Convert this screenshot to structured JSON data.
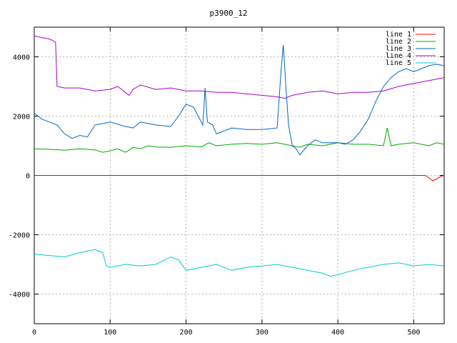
{
  "chart_data": {
    "type": "line",
    "title": "p3900_12",
    "xlabel": "",
    "ylabel": "",
    "xlim": [
      0,
      540
    ],
    "ylim": [
      -5000,
      5000
    ],
    "xticks": [
      0,
      100,
      200,
      300,
      400,
      500
    ],
    "yticks": [
      -4000,
      -2000,
      0,
      2000,
      4000
    ],
    "grid": true,
    "legend_position": "top-right",
    "series": [
      {
        "name": "line 1",
        "color": "#ff0000",
        "points": [
          [
            0,
            0
          ],
          [
            100,
            0
          ],
          [
            200,
            0
          ],
          [
            300,
            0
          ],
          [
            400,
            0
          ],
          [
            500,
            0
          ],
          [
            515,
            0
          ],
          [
            520,
            -80
          ],
          [
            525,
            -180
          ],
          [
            530,
            -120
          ],
          [
            535,
            -40
          ],
          [
            540,
            0
          ]
        ]
      },
      {
        "name": "line 2",
        "color": "#00aa00",
        "points": [
          [
            0,
            900
          ],
          [
            20,
            880
          ],
          [
            40,
            850
          ],
          [
            60,
            900
          ],
          [
            80,
            860
          ],
          [
            90,
            780
          ],
          [
            100,
            830
          ],
          [
            110,
            900
          ],
          [
            120,
            780
          ],
          [
            125,
            850
          ],
          [
            130,
            950
          ],
          [
            140,
            900
          ],
          [
            150,
            1000
          ],
          [
            160,
            960
          ],
          [
            180,
            950
          ],
          [
            200,
            1000
          ],
          [
            220,
            960
          ],
          [
            230,
            1100
          ],
          [
            240,
            1000
          ],
          [
            260,
            1050
          ],
          [
            280,
            1080
          ],
          [
            300,
            1050
          ],
          [
            320,
            1100
          ],
          [
            340,
            1000
          ],
          [
            350,
            950
          ],
          [
            360,
            1050
          ],
          [
            380,
            1000
          ],
          [
            400,
            1100
          ],
          [
            420,
            1050
          ],
          [
            440,
            1050
          ],
          [
            460,
            1000
          ],
          [
            465,
            1600
          ],
          [
            470,
            1000
          ],
          [
            480,
            1050
          ],
          [
            500,
            1100
          ],
          [
            520,
            1000
          ],
          [
            530,
            1100
          ],
          [
            540,
            1050
          ]
        ]
      },
      {
        "name": "line 3",
        "color": "#0066cc",
        "points": [
          [
            0,
            2100
          ],
          [
            10,
            1900
          ],
          [
            20,
            1800
          ],
          [
            30,
            1700
          ],
          [
            40,
            1400
          ],
          [
            50,
            1250
          ],
          [
            60,
            1350
          ],
          [
            70,
            1300
          ],
          [
            80,
            1700
          ],
          [
            100,
            1800
          ],
          [
            120,
            1650
          ],
          [
            130,
            1600
          ],
          [
            140,
            1800
          ],
          [
            160,
            1700
          ],
          [
            180,
            1650
          ],
          [
            190,
            2000
          ],
          [
            200,
            2400
          ],
          [
            210,
            2300
          ],
          [
            218,
            1900
          ],
          [
            222,
            1700
          ],
          [
            225,
            2950
          ],
          [
            228,
            1800
          ],
          [
            235,
            1700
          ],
          [
            240,
            1400
          ],
          [
            260,
            1600
          ],
          [
            280,
            1550
          ],
          [
            300,
            1550
          ],
          [
            320,
            1600
          ],
          [
            325,
            3500
          ],
          [
            328,
            4400
          ],
          [
            332,
            2800
          ],
          [
            335,
            1700
          ],
          [
            340,
            1000
          ],
          [
            345,
            900
          ],
          [
            350,
            700
          ],
          [
            360,
            1000
          ],
          [
            370,
            1200
          ],
          [
            380,
            1100
          ],
          [
            400,
            1100
          ],
          [
            410,
            1050
          ],
          [
            420,
            1200
          ],
          [
            430,
            1500
          ],
          [
            440,
            1900
          ],
          [
            450,
            2500
          ],
          [
            460,
            3000
          ],
          [
            470,
            3300
          ],
          [
            480,
            3500
          ],
          [
            490,
            3600
          ],
          [
            500,
            3500
          ],
          [
            510,
            3600
          ],
          [
            520,
            3700
          ],
          [
            530,
            3750
          ],
          [
            540,
            3700
          ]
        ]
      },
      {
        "name": "line 4",
        "color": "#aa00cc",
        "points": [
          [
            0,
            4700
          ],
          [
            10,
            4650
          ],
          [
            20,
            4600
          ],
          [
            28,
            4500
          ],
          [
            30,
            3000
          ],
          [
            40,
            2950
          ],
          [
            60,
            2950
          ],
          [
            80,
            2850
          ],
          [
            100,
            2900
          ],
          [
            110,
            3000
          ],
          [
            120,
            2800
          ],
          [
            125,
            2700
          ],
          [
            130,
            2900
          ],
          [
            140,
            3050
          ],
          [
            160,
            2900
          ],
          [
            180,
            2950
          ],
          [
            200,
            2850
          ],
          [
            220,
            2850
          ],
          [
            240,
            2800
          ],
          [
            260,
            2800
          ],
          [
            280,
            2750
          ],
          [
            300,
            2700
          ],
          [
            320,
            2650
          ],
          [
            330,
            2600
          ],
          [
            340,
            2700
          ],
          [
            360,
            2800
          ],
          [
            380,
            2850
          ],
          [
            400,
            2750
          ],
          [
            420,
            2800
          ],
          [
            440,
            2800
          ],
          [
            460,
            2850
          ],
          [
            480,
            3000
          ],
          [
            500,
            3100
          ],
          [
            520,
            3200
          ],
          [
            540,
            3300
          ]
        ]
      },
      {
        "name": "line 5",
        "color": "#00cccc",
        "points": [
          [
            0,
            -2650
          ],
          [
            20,
            -2700
          ],
          [
            40,
            -2750
          ],
          [
            60,
            -2600
          ],
          [
            70,
            -2550
          ],
          [
            80,
            -2500
          ],
          [
            90,
            -2600
          ],
          [
            95,
            -3050
          ],
          [
            100,
            -3100
          ],
          [
            120,
            -3000
          ],
          [
            140,
            -3050
          ],
          [
            160,
            -3000
          ],
          [
            180,
            -2750
          ],
          [
            190,
            -2850
          ],
          [
            200,
            -3200
          ],
          [
            220,
            -3100
          ],
          [
            240,
            -3000
          ],
          [
            260,
            -3200
          ],
          [
            280,
            -3100
          ],
          [
            300,
            -3050
          ],
          [
            320,
            -3000
          ],
          [
            340,
            -3100
          ],
          [
            360,
            -3200
          ],
          [
            380,
            -3300
          ],
          [
            390,
            -3400
          ],
          [
            400,
            -3350
          ],
          [
            420,
            -3200
          ],
          [
            440,
            -3100
          ],
          [
            460,
            -3000
          ],
          [
            480,
            -2950
          ],
          [
            500,
            -3050
          ],
          [
            520,
            -3000
          ],
          [
            540,
            -3050
          ]
        ]
      }
    ]
  }
}
